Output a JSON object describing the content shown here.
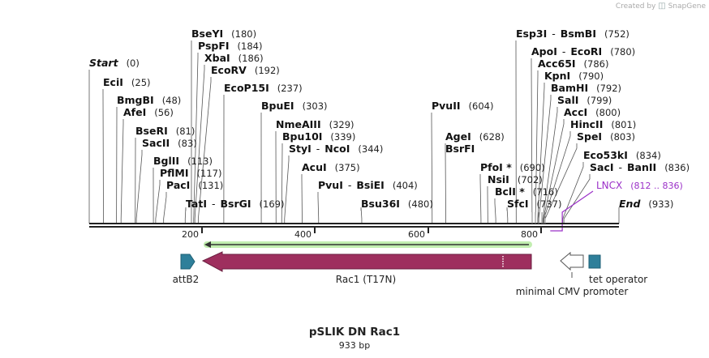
{
  "credit": {
    "prefix": "Created by",
    "brand": "SnapGene"
  },
  "title": "pSLIK DN Rac1",
  "length_label": "933 bp",
  "sequence_length": 933,
  "ruler_ticks": [
    "200",
    "400",
    "600",
    "800"
  ],
  "enzymes": [
    {
      "name": "Start",
      "pos": "(0)",
      "bp": 0,
      "italic": true
    },
    {
      "name": "EciI",
      "pos": "(25)",
      "bp": 25
    },
    {
      "name": "BmgBI",
      "pos": "(48)",
      "bp": 48
    },
    {
      "name": "AfeI",
      "pos": "(56)",
      "bp": 56
    },
    {
      "name": "BseRI",
      "pos": "(81)",
      "bp": 81
    },
    {
      "name": "SacII",
      "pos": "(83)",
      "bp": 83
    },
    {
      "name": "BglII",
      "pos": "(113)",
      "bp": 113
    },
    {
      "name": "PflMI",
      "pos": "(117)",
      "bp": 117
    },
    {
      "name": "PacI",
      "pos": "(131)",
      "bp": 131
    },
    {
      "name": "TatI",
      "name2": "BsrGI",
      "pos": "(169)",
      "bp": 169
    },
    {
      "name": "BseYI",
      "pos": "(180)",
      "bp": 180
    },
    {
      "name": "PspFI",
      "pos": "(184)",
      "bp": 184
    },
    {
      "name": "XbaI",
      "pos": "(186)",
      "bp": 186
    },
    {
      "name": "EcoRV",
      "pos": "(192)",
      "bp": 192
    },
    {
      "name": "EcoP15I",
      "pos": "(237)",
      "bp": 237
    },
    {
      "name": "BpuEI",
      "pos": "(303)",
      "bp": 303
    },
    {
      "name": "NmeAIII",
      "pos": "(329)",
      "bp": 329
    },
    {
      "name": "Bpu10I",
      "pos": "(339)",
      "bp": 339
    },
    {
      "name": "StyI",
      "name2": "NcoI",
      "pos": "(344)",
      "bp": 344
    },
    {
      "name": "AcuI",
      "pos": "(375)",
      "bp": 375
    },
    {
      "name": "PvuI",
      "name2": "BsiEI",
      "pos": "(404)",
      "bp": 404
    },
    {
      "name": "Bsu36I",
      "pos": "(480)",
      "bp": 480
    },
    {
      "name": "PvuII",
      "pos": "(604)",
      "bp": 604
    },
    {
      "name": "AgeI",
      "pos": "(628)",
      "bp": 628
    },
    {
      "name": "BsrFI",
      "pos": "",
      "bp": 628
    },
    {
      "name": "PfoI *",
      "pos": "(690)",
      "bp": 690
    },
    {
      "name": "NsiI",
      "pos": "(702)",
      "bp": 702
    },
    {
      "name": "BclI *",
      "pos": "(716)",
      "bp": 716
    },
    {
      "name": "SfcI",
      "pos": "(737)",
      "bp": 737
    },
    {
      "name": "Esp3I",
      "name2": "BsmBI",
      "pos": "(752)",
      "bp": 752
    },
    {
      "name": "ApoI",
      "name2": "EcoRI",
      "pos": "(780)",
      "bp": 780
    },
    {
      "name": "Acc65I",
      "pos": "(786)",
      "bp": 786
    },
    {
      "name": "KpnI",
      "pos": "(790)",
      "bp": 790
    },
    {
      "name": "BamHI",
      "pos": "(792)",
      "bp": 792
    },
    {
      "name": "SalI",
      "pos": "(799)",
      "bp": 799
    },
    {
      "name": "AccI",
      "pos": "(800)",
      "bp": 800
    },
    {
      "name": "HincII",
      "pos": "(801)",
      "bp": 801
    },
    {
      "name": "SpeI",
      "pos": "(803)",
      "bp": 803
    },
    {
      "name": "Eco53kI",
      "pos": "(834)",
      "bp": 834
    },
    {
      "name": "SacI",
      "name2": "BanII",
      "pos": "(836)",
      "bp": 836
    },
    {
      "name": "End",
      "pos": "(933)",
      "bp": 933,
      "italic": true
    }
  ],
  "lncx": {
    "name": "LNCX",
    "range": "(812 .. 836)",
    "color": "#9b30c8"
  },
  "features": [
    {
      "name": "attB2",
      "color": "#2e7f9a"
    },
    {
      "name": "Rac1 (T17N)",
      "color": "#9e2f5e"
    },
    {
      "name": "minimal CMV promoter",
      "color": "#ffffff"
    },
    {
      "name": "tet operator",
      "color": "#2e7f9a"
    }
  ],
  "orf_color": "#8fe070"
}
